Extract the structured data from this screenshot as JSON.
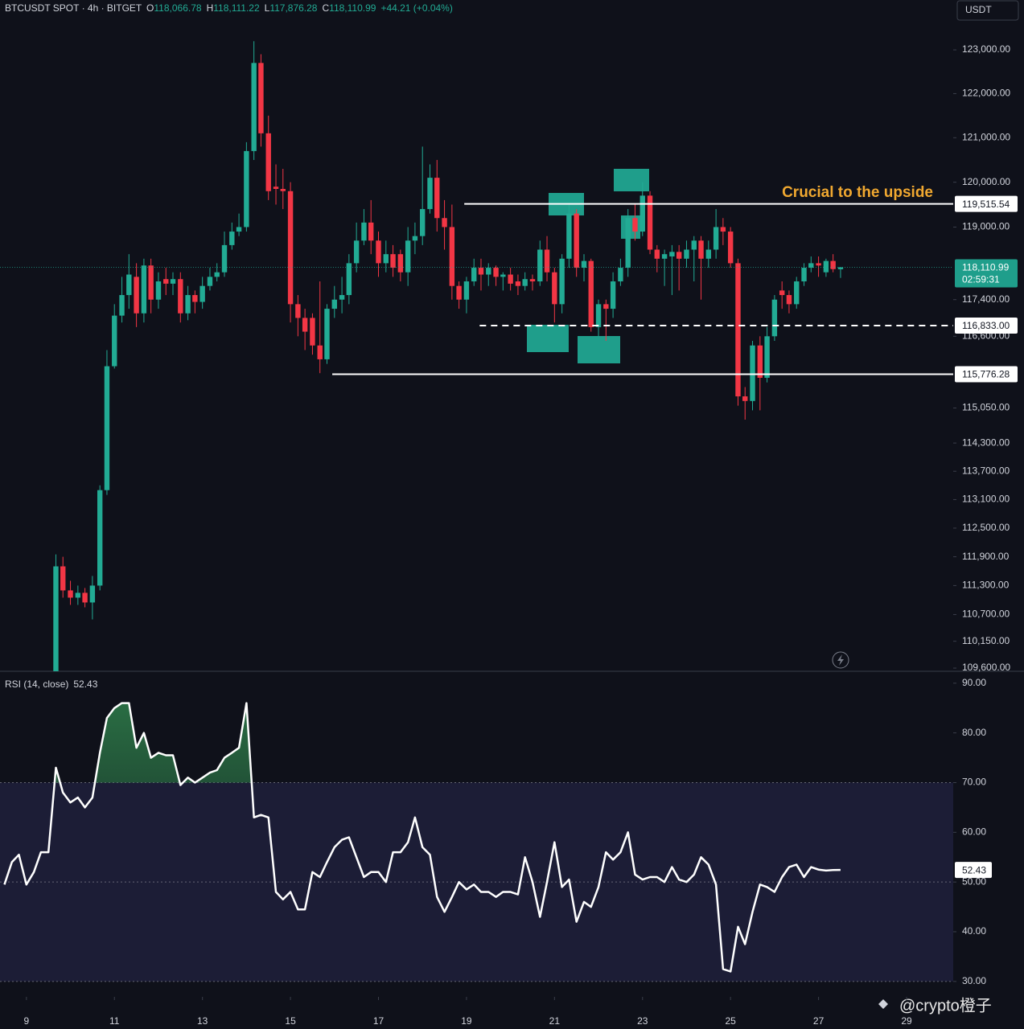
{
  "header": {
    "symbol": "BTCUSDT SPOT · 4h · BITGET",
    "o": "O",
    "o_value": "118,066.78",
    "h": "H",
    "h_value": "118,111.22",
    "l": "L",
    "l_value": "117,876.28",
    "c": "C",
    "c_value": "118,110.99",
    "change": "+44.21 (+0.04%)",
    "currency": "USDT",
    "watermark": "@crypto橙子"
  },
  "chart_data": [
    {
      "type": "candlestick",
      "log": true,
      "grid": false,
      "up_color": "#22ab94",
      "down_color": "#f23645",
      "x": [
        9.67,
        9.83,
        10,
        10.17,
        10.33,
        10.5,
        10.67,
        10.83,
        11,
        11.17,
        11.33,
        11.5,
        11.67,
        11.83,
        12,
        12.17,
        12.33,
        12.5,
        12.67,
        12.83,
        13,
        13.17,
        13.33,
        13.5,
        13.67,
        13.83,
        14,
        14.17,
        14.33,
        14.5,
        14.67,
        14.83,
        15,
        15.17,
        15.33,
        15.5,
        15.67,
        15.83,
        16,
        16.17,
        16.33,
        16.5,
        16.67,
        16.83,
        17,
        17.17,
        17.33,
        17.5,
        17.67,
        17.83,
        18,
        18.17,
        18.33,
        18.5,
        18.67,
        18.83,
        19,
        19.17,
        19.33,
        19.5,
        19.67,
        19.83,
        20,
        20.17,
        20.33,
        20.5,
        20.67,
        20.83,
        21,
        21.17,
        21.33,
        21.5,
        21.67,
        21.83,
        22,
        22.17,
        22.33,
        22.5,
        22.67,
        22.83,
        23,
        23.17,
        23.33,
        23.5,
        23.67,
        23.83,
        24,
        24.17,
        24.33,
        24.5,
        24.67,
        24.83,
        25,
        25.17,
        25.33,
        25.5,
        25.67,
        25.83,
        26,
        26.17,
        26.33,
        26.5,
        26.67,
        26.83,
        27,
        27.17,
        27.33,
        27.5
      ],
      "ohlc": [
        [
          109500,
          111950,
          109200,
          111700
        ],
        [
          111700,
          111900,
          111050,
          111200
        ],
        [
          111200,
          111400,
          110900,
          111050
        ],
        [
          111050,
          111300,
          110900,
          111150
        ],
        [
          111150,
          111250,
          110850,
          110950
        ],
        [
          110950,
          111500,
          110600,
          111300
        ],
        [
          111300,
          113400,
          111200,
          113300
        ],
        [
          113300,
          116300,
          113200,
          115950
        ],
        [
          115950,
          117300,
          115900,
          117050
        ],
        [
          117050,
          117900,
          116900,
          117500
        ],
        [
          117500,
          118400,
          117200,
          117950
        ],
        [
          117900,
          118200,
          116800,
          117100
        ],
        [
          117100,
          118300,
          116900,
          118150
        ],
        [
          118150,
          118300,
          117100,
          117400
        ],
        [
          117400,
          118000,
          117200,
          117800
        ],
        [
          117850,
          118100,
          117500,
          117750
        ],
        [
          117750,
          118000,
          117500,
          117850
        ],
        [
          117850,
          118000,
          116900,
          117100
        ],
        [
          117100,
          117700,
          116950,
          117500
        ],
        [
          117500,
          117600,
          117100,
          117350
        ],
        [
          117350,
          117900,
          117200,
          117700
        ],
        [
          117700,
          118100,
          117600,
          117900
        ],
        [
          117900,
          118200,
          117800,
          118000
        ],
        [
          118000,
          118900,
          117900,
          118600
        ],
        [
          118600,
          119100,
          118500,
          118900
        ],
        [
          118900,
          119300,
          118800,
          119000
        ],
        [
          119000,
          120900,
          118900,
          120700
        ],
        [
          120700,
          123200,
          120500,
          122700
        ],
        [
          122700,
          122900,
          120800,
          121100
        ],
        [
          121100,
          121500,
          119600,
          119800
        ],
        [
          119900,
          120400,
          119500,
          119850
        ],
        [
          119850,
          120300,
          119400,
          119800
        ],
        [
          119800,
          120000,
          116900,
          117300
        ],
        [
          117300,
          117500,
          116600,
          117000
        ],
        [
          117000,
          117200,
          116300,
          116700
        ],
        [
          117000,
          117100,
          116200,
          116400
        ],
        [
          116400,
          117800,
          115800,
          116100
        ],
        [
          116100,
          117300,
          116000,
          117200
        ],
        [
          117200,
          117700,
          117000,
          117400
        ],
        [
          117400,
          117900,
          117100,
          117500
        ],
        [
          117500,
          118400,
          117300,
          118200
        ],
        [
          118200,
          119100,
          118000,
          118700
        ],
        [
          118700,
          119400,
          118600,
          119100
        ],
        [
          119100,
          119600,
          118400,
          118700
        ],
        [
          118700,
          118900,
          117900,
          118200
        ],
        [
          118200,
          118700,
          118000,
          118400
        ],
        [
          118400,
          118600,
          117900,
          118100
        ],
        [
          118400,
          118500,
          117800,
          118000
        ],
        [
          118000,
          119000,
          117700,
          118700
        ],
        [
          118700,
          119100,
          118400,
          118800
        ],
        [
          118800,
          120800,
          118600,
          119400
        ],
        [
          119400,
          120400,
          119300,
          120100
        ],
        [
          120100,
          120500,
          118900,
          119200
        ],
        [
          119200,
          119600,
          118500,
          119000
        ],
        [
          119000,
          119500,
          117400,
          117700
        ],
        [
          117700,
          117800,
          117200,
          117400
        ],
        [
          117400,
          117900,
          117100,
          117800
        ],
        [
          117800,
          118300,
          117700,
          118100
        ],
        [
          118100,
          118300,
          117600,
          117950
        ],
        [
          117950,
          118200,
          117700,
          118100
        ],
        [
          118100,
          118150,
          117700,
          117900
        ],
        [
          117900,
          118000,
          117600,
          117950
        ],
        [
          117950,
          118100,
          117600,
          117750
        ],
        [
          117800,
          117950,
          117500,
          117700
        ],
        [
          117700,
          118000,
          117600,
          117850
        ],
        [
          117850,
          117950,
          117600,
          117800
        ],
        [
          117800,
          118700,
          117700,
          118500
        ],
        [
          118500,
          118800,
          117800,
          118000
        ],
        [
          118000,
          118100,
          116900,
          117300
        ],
        [
          117300,
          118400,
          117100,
          118300
        ],
        [
          118300,
          119500,
          118100,
          119300
        ],
        [
          119300,
          119400,
          117900,
          118100
        ],
        [
          118100,
          118400,
          117800,
          118250
        ],
        [
          118250,
          118300,
          116700,
          116800
        ],
        [
          116800,
          117400,
          116600,
          117300
        ],
        [
          117300,
          117400,
          116500,
          117200
        ],
        [
          117200,
          118000,
          117000,
          117800
        ],
        [
          117800,
          118300,
          117700,
          118100
        ],
        [
          118100,
          119400,
          117900,
          119200
        ],
        [
          119200,
          119500,
          118700,
          118900
        ],
        [
          118900,
          120000,
          118800,
          119700
        ],
        [
          119700,
          119800,
          118400,
          118500
        ],
        [
          118500,
          118600,
          118000,
          118300
        ],
        [
          118300,
          118500,
          117700,
          118400
        ],
        [
          118350,
          118600,
          117500,
          118450
        ],
        [
          118450,
          118600,
          117600,
          118300
        ],
        [
          118300,
          118700,
          118100,
          118500
        ],
        [
          118500,
          118800,
          117800,
          118700
        ],
        [
          118700,
          118800,
          117400,
          118300
        ],
        [
          118300,
          118700,
          118100,
          118500
        ],
        [
          118500,
          119400,
          118300,
          119000
        ],
        [
          119000,
          119200,
          118600,
          118900
        ],
        [
          118900,
          119000,
          118100,
          118200
        ],
        [
          118200,
          118300,
          115100,
          115300
        ],
        [
          115300,
          115500,
          114800,
          115200
        ],
        [
          115200,
          116500,
          115000,
          116400
        ],
        [
          116400,
          116600,
          115000,
          115700
        ],
        [
          115700,
          116800,
          115600,
          116600
        ],
        [
          116600,
          117500,
          116500,
          117400
        ],
        [
          117600,
          117800,
          117200,
          117500
        ],
        [
          117500,
          117600,
          117100,
          117300
        ],
        [
          117300,
          117900,
          117200,
          117800
        ],
        [
          117800,
          118200,
          117700,
          118100
        ],
        [
          118100,
          118350,
          118000,
          118200
        ],
        [
          118200,
          118350,
          117900,
          118150
        ],
        [
          118000,
          118300,
          117900,
          118250
        ],
        [
          118250,
          118400,
          118000,
          118070
        ],
        [
          118066.78,
          118111.22,
          117876.28,
          118110.99
        ]
      ],
      "xlim": [
        8.4,
        30.06
      ],
      "ylim": [
        109535,
        124150
      ],
      "yticks": [
        {
          "value": 123000,
          "label": "123,000.00"
        },
        {
          "value": 122000,
          "label": "122,000.00"
        },
        {
          "value": 121000,
          "label": "121,000.00"
        },
        {
          "value": 120000,
          "label": "120,000.00"
        },
        {
          "value": 119000,
          "label": "119,000.00"
        },
        {
          "value": 117400,
          "label": "117,400.00"
        },
        {
          "value": 116600,
          "label": "116,600.00"
        },
        {
          "value": 115050,
          "label": "115,050.00"
        },
        {
          "value": 114300,
          "label": "114,300.00"
        },
        {
          "value": 113700,
          "label": "113,700.00"
        },
        {
          "value": 113100,
          "label": "113,100.00"
        },
        {
          "value": 112500,
          "label": "112,500.00"
        },
        {
          "value": 111900,
          "label": "111,900.00"
        },
        {
          "value": 111300,
          "label": "111,300.00"
        },
        {
          "value": 110700,
          "label": "110,700.00"
        },
        {
          "value": 110150,
          "label": "110,150.00"
        },
        {
          "value": 109600,
          "label": "109,600.00"
        }
      ],
      "levels": [
        {
          "value": 115776.28,
          "label": "115,776.28",
          "style": "solid",
          "from": 15.95
        },
        {
          "value": 116833,
          "label": "116,833.00",
          "style": "dashed",
          "from": 19.3
        },
        {
          "value": 119515.54,
          "label": "119,515.54",
          "style": "solid",
          "from": 18.95
        }
      ],
      "annotation": "Crucial to the upside",
      "last_label": "118,110.99",
      "countdown": "02:59:31"
    },
    {
      "type": "line",
      "name": "RSI (14, close)",
      "value_label": "52.43",
      "color": "#ffffff",
      "x": [
        8.5,
        8.67,
        8.83,
        9,
        9.17,
        9.33,
        9.5,
        9.67,
        9.83,
        10,
        10.17,
        10.33,
        10.5,
        10.67,
        10.83,
        11,
        11.17,
        11.33,
        11.5,
        11.67,
        11.83,
        12,
        12.17,
        12.33,
        12.5,
        12.67,
        12.83,
        13,
        13.17,
        13.33,
        13.5,
        13.67,
        13.83,
        14,
        14.17,
        14.33,
        14.5,
        14.67,
        14.83,
        15,
        15.17,
        15.33,
        15.5,
        15.67,
        15.83,
        16,
        16.17,
        16.33,
        16.5,
        16.67,
        16.83,
        17,
        17.17,
        17.33,
        17.5,
        17.67,
        17.83,
        18,
        18.17,
        18.33,
        18.5,
        18.67,
        18.83,
        19,
        19.17,
        19.33,
        19.5,
        19.67,
        19.83,
        20,
        20.17,
        20.33,
        20.5,
        20.67,
        20.83,
        21,
        21.17,
        21.33,
        21.5,
        21.67,
        21.83,
        22,
        22.17,
        22.33,
        22.5,
        22.67,
        22.83,
        23,
        23.17,
        23.33,
        23.5,
        23.67,
        23.83,
        24,
        24.17,
        24.33,
        24.5,
        24.67,
        24.83,
        25,
        25.17,
        25.33,
        25.5,
        25.67,
        25.83,
        26,
        26.17,
        26.33,
        26.5,
        26.67,
        26.83,
        27,
        27.17,
        27.33,
        27.5
      ],
      "values": [
        49.5,
        54,
        55.5,
        49.5,
        52,
        56,
        56,
        73,
        68,
        66,
        67,
        65,
        67,
        76,
        83,
        85,
        86,
        86,
        77,
        80,
        75,
        76,
        75.5,
        75.5,
        69.5,
        71,
        70,
        71,
        72,
        72.5,
        75,
        76,
        77,
        86,
        63,
        63.5,
        63,
        48,
        46.5,
        48,
        44.5,
        44.5,
        52,
        51,
        54,
        57,
        58.5,
        59,
        55,
        51,
        52,
        52,
        50,
        56,
        56,
        58,
        63,
        57,
        55.5,
        47,
        44,
        47,
        50,
        48.5,
        49.5,
        48,
        48,
        47,
        48,
        48,
        47.5,
        55,
        50,
        43,
        50,
        58,
        49,
        50.5,
        42,
        46,
        45,
        49,
        56,
        54.5,
        56,
        60,
        51.5,
        50.5,
        51,
        51,
        50,
        53,
        50.5,
        50,
        51.5,
        55,
        53.5,
        49.5,
        32.5,
        32,
        41,
        37.5,
        44,
        49.5,
        49,
        48,
        51,
        53,
        53.5,
        51,
        53,
        52.5,
        52.3,
        52.4,
        52.43
      ],
      "xlim": [
        8.4,
        30.06
      ],
      "ylim": [
        26.9,
        92.4
      ],
      "band": [
        30,
        70
      ],
      "midline": 50,
      "yticks": [
        {
          "value": 90,
          "label": "90.00"
        },
        {
          "value": 80,
          "label": "80.00"
        },
        {
          "value": 70,
          "label": "70.00"
        },
        {
          "value": 60,
          "label": "60.00"
        },
        {
          "value": 50,
          "label": "50.00"
        },
        {
          "value": 40,
          "label": "40.00"
        },
        {
          "value": 30,
          "label": "30.00"
        }
      ],
      "xticks": [
        9,
        11,
        13,
        15,
        17,
        19,
        21,
        23,
        25,
        27,
        29
      ]
    }
  ]
}
